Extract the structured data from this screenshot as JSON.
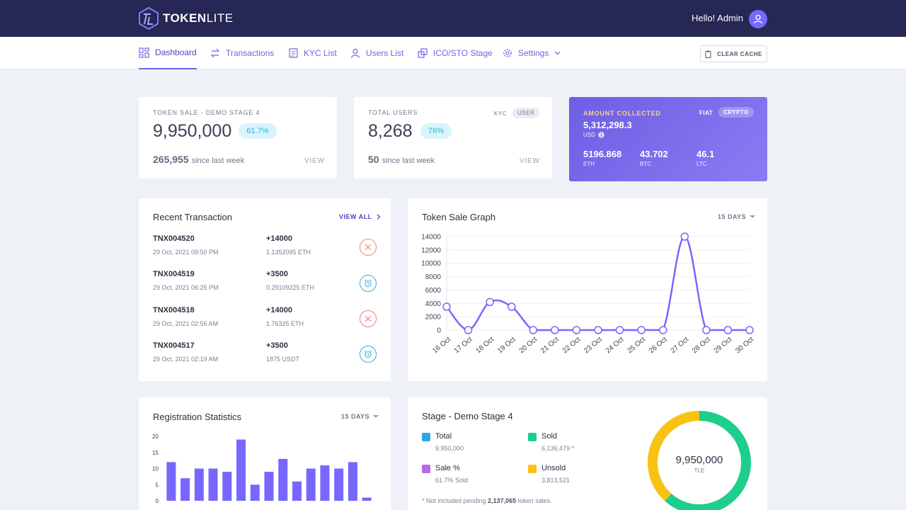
{
  "brand": {
    "name_bold": "TOKEN",
    "name_light": "LITE"
  },
  "header": {
    "greeting": "Hello! Admin"
  },
  "nav": {
    "items": [
      {
        "label": "Dashboard",
        "icon": "dashboard-icon"
      },
      {
        "label": "Transactions",
        "icon": "transactions-icon"
      },
      {
        "label": "KYC List",
        "icon": "kyc-icon"
      },
      {
        "label": "Users List",
        "icon": "users-icon"
      },
      {
        "label": "ICO/STO Stage",
        "icon": "stage-icon"
      },
      {
        "label": "Settings",
        "icon": "gear-icon"
      }
    ],
    "clear_cache": "CLEAR CACHE"
  },
  "token_sale": {
    "label": "TOKEN SALE - DEMO STAGE 4",
    "value": "9,950,000",
    "percent": "61.7%",
    "week_value": "265,955",
    "week_text": "since last week",
    "view": "VIEW"
  },
  "total_users": {
    "label": "TOTAL USERS",
    "value": "8,268",
    "percent": "76%",
    "week_value": "50",
    "week_text": "since last week",
    "view": "VIEW",
    "tabs": [
      "KYC",
      "USER"
    ]
  },
  "amount": {
    "label": "AMOUNT COLLECTED",
    "toggle": [
      "FIAT",
      "CRYPTO"
    ],
    "usd_value": "5,312,298.3",
    "usd_label": "USD",
    "coins": [
      {
        "value": "5196.868",
        "unit": "ETH"
      },
      {
        "value": "43.702",
        "unit": "BTC"
      },
      {
        "value": "46.1",
        "unit": "LTC"
      }
    ]
  },
  "recent_tx": {
    "title": "Recent Transaction",
    "view_all": "VIEW ALL",
    "items": [
      {
        "id": "TNX004520",
        "date": "29 Oct, 2021 09:50 PM",
        "amount": "+14000",
        "sub": "1.1352095 ETH",
        "status": "cancel"
      },
      {
        "id": "TNX004519",
        "date": "29 Oct, 2021 06:25 PM",
        "amount": "+3500",
        "sub": "0.29109225 ETH",
        "status": "pending"
      },
      {
        "id": "TNX004518",
        "date": "29 Oct, 2021 02:56 AM",
        "amount": "+14000",
        "sub": "1.76325 ETH",
        "status": "cancel"
      },
      {
        "id": "TNX004517",
        "date": "29 Oct, 2021 02:19 AM",
        "amount": "+3500",
        "sub": "1875 USDT",
        "status": "pending"
      }
    ]
  },
  "token_graph": {
    "title": "Token Sale Graph",
    "range": "15 DAYS"
  },
  "registration": {
    "title": "Registration Statistics",
    "range": "15 DAYS"
  },
  "stage": {
    "title": "Stage - Demo Stage 4",
    "legend": [
      {
        "name": "Total",
        "value": "9,950,000",
        "color": "#2da6ea"
      },
      {
        "name": "Sold",
        "value": "6,136,479 *",
        "color": "#1ecf8c"
      },
      {
        "name": "Sale %",
        "value": "61.7% Sold",
        "color": "#b66ae8"
      },
      {
        "name": "Unsold",
        "value": "3,813,521",
        "color": "#f8c212"
      }
    ],
    "note_prefix": "* Not included pending",
    "note_value": "2,137,065",
    "note_suffix": "token sales.",
    "donut_value": "9,950,000",
    "donut_unit": "TLE"
  },
  "chart_data": [
    {
      "type": "line",
      "categories": [
        "16 Oct",
        "17 Oct",
        "18 Oct",
        "19 Oct",
        "20 Oct",
        "21 Oct",
        "22 Oct",
        "23 Oct",
        "24 Oct",
        "25 Oct",
        "26 Oct",
        "27 Oct",
        "28 Oct",
        "29 Oct",
        "30 Oct"
      ],
      "values": [
        3500,
        0,
        4200,
        3500,
        0,
        0,
        0,
        0,
        0,
        0,
        0,
        14000,
        0,
        0,
        0
      ],
      "yticks": [
        0,
        2000,
        4000,
        6000,
        8000,
        10000,
        12000,
        14000
      ],
      "ylim": [
        0,
        14000
      ],
      "color": "#7668fe",
      "grid": true
    },
    {
      "type": "bar",
      "values": [
        12,
        7,
        10,
        10,
        9,
        19,
        5,
        9,
        13,
        6,
        10,
        11,
        10,
        12,
        1
      ],
      "yticks": [
        0,
        5,
        10,
        15,
        20
      ],
      "ylim": [
        0,
        20
      ],
      "color": "#7668fe"
    },
    {
      "type": "pie",
      "categories": [
        "Sold",
        "Unsold"
      ],
      "values": [
        6136479,
        3813521
      ],
      "colors": [
        "#1ecf8c",
        "#f8c212"
      ]
    }
  ]
}
